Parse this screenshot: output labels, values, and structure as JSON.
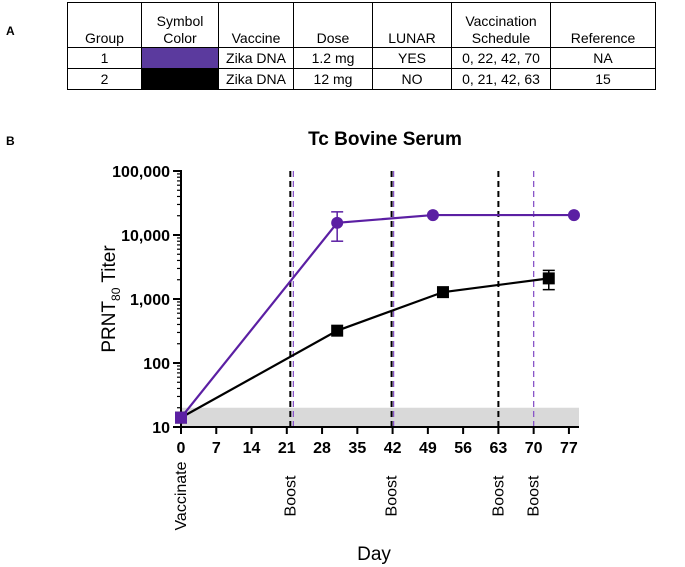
{
  "panel_a": {
    "letter": "A",
    "headers": {
      "group": "Group",
      "symbol_color_line1": "Symbol",
      "symbol_color_line2": "Color",
      "vaccine": "Vaccine",
      "dose": "Dose",
      "lunar": "LUNAR",
      "schedule_line1": "Vaccination",
      "schedule_line2": "Schedule",
      "reference": "Reference"
    },
    "rows": [
      {
        "group": "1",
        "color": "#5b3a9e",
        "vaccine": "Zika DNA",
        "dose": "1.2 mg",
        "lunar": "YES",
        "schedule": "0, 22, 42, 70",
        "reference": "NA"
      },
      {
        "group": "2",
        "color": "#000000",
        "vaccine": "Zika DNA",
        "dose": "12 mg",
        "lunar": "NO",
        "schedule": "0, 21, 42, 63",
        "reference": "15"
      }
    ]
  },
  "panel_b": {
    "letter": "B"
  },
  "chart_data": {
    "type": "line",
    "title": "Tc Bovine Serum",
    "xlabel": "Day",
    "ylabel_main": "PRNT",
    "ylabel_sub": "80",
    "ylabel_suffix": " Titer",
    "y_scale": "log",
    "ylim": [
      10,
      100000
    ],
    "xlim": [
      0,
      79
    ],
    "x_ticks": [
      0,
      7,
      14,
      21,
      28,
      35,
      42,
      49,
      56,
      63,
      70,
      77
    ],
    "y_ticks": [
      {
        "value": 10,
        "label": "10"
      },
      {
        "value": 100,
        "label": "100"
      },
      {
        "value": 1000,
        "label": "1,000"
      },
      {
        "value": 10000,
        "label": "10,000"
      },
      {
        "value": 100000,
        "label": "100,000"
      }
    ],
    "limit_of_detection_band": [
      10,
      20
    ],
    "series": [
      {
        "color": "#5b1fa3",
        "marker": "circle",
        "points": [
          {
            "x": 0,
            "y": 14
          },
          {
            "x": 31,
            "y": 15500,
            "err_low": 8000,
            "err_high": 23000
          },
          {
            "x": 50,
            "y": 20480
          },
          {
            "x": 78,
            "y": 20480
          }
        ]
      },
      {
        "color": "#000000",
        "marker": "square",
        "points": [
          {
            "x": 0,
            "y": 14
          },
          {
            "x": 31,
            "y": 320
          },
          {
            "x": 52,
            "y": 1280
          },
          {
            "x": 73,
            "y": 2100,
            "err_low": 1400,
            "err_high": 2800
          }
        ]
      }
    ],
    "event_lines": [
      {
        "day": 0,
        "style": "dotted",
        "color": "#000000",
        "label": "Vaccinate"
      },
      {
        "day": 21.7,
        "style": "dashed",
        "color": "#000000",
        "label": "Boost"
      },
      {
        "day": 22.3,
        "style": "dashed",
        "color": "#8a55c9",
        "label": ""
      },
      {
        "day": 41.8,
        "style": "dashed",
        "color": "#000000",
        "label": "Boost"
      },
      {
        "day": 42.2,
        "style": "dashed",
        "color": "#8a55c9",
        "label": ""
      },
      {
        "day": 63,
        "style": "dashed",
        "color": "#000000",
        "label": "Boost"
      },
      {
        "day": 70,
        "style": "dashed",
        "color": "#8a55c9",
        "label": "Boost"
      }
    ]
  }
}
